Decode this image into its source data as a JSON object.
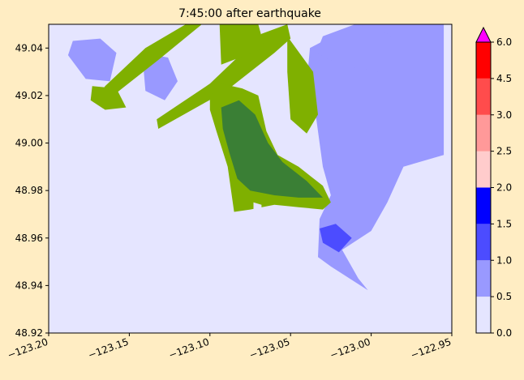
{
  "chart_data": {
    "type": "heatmap",
    "title": "7:45:00 after earthquake",
    "xlim": [
      -123.2,
      -122.95
    ],
    "ylim": [
      48.92,
      49.05
    ],
    "xticks": [
      -123.2,
      -123.15,
      -123.1,
      -123.05,
      -123.0,
      -122.95
    ],
    "xtick_labels": [
      "−123.20",
      "−123.15",
      "−123.10",
      "−123.05",
      "−123.00",
      "−122.95"
    ],
    "yticks": [
      48.92,
      48.94,
      48.96,
      48.98,
      49.0,
      49.02,
      49.04
    ],
    "ytick_labels": [
      "48.92",
      "48.94",
      "48.96",
      "48.98",
      "49.00",
      "49.02",
      "49.04"
    ],
    "background_color": "#e5e5ff",
    "land_colors": {
      "light": "#7fb000",
      "dark": "#3a7f35"
    },
    "colorbar": {
      "ticks": [
        "0.0",
        "0.5",
        "1.0",
        "1.5",
        "2.0",
        "2.5",
        "3.0",
        "4.5",
        "6.0"
      ],
      "colors": [
        "#e5e5ff",
        "#9999ff",
        "#4c4cff",
        "#0000ff",
        "#ffcccc",
        "#ff9999",
        "#ff4c4c",
        "#ff0000"
      ],
      "extend_color": "#ff00ff"
    },
    "regions": {
      "main_land": [
        [
          -123.1,
          49.02
        ],
        [
          -123.093,
          49.025
        ],
        [
          -123.08,
          49.023
        ],
        [
          -123.07,
          49.02
        ],
        [
          -123.065,
          49.005
        ],
        [
          -123.058,
          48.995
        ],
        [
          -123.045,
          48.99
        ],
        [
          -123.03,
          48.982
        ],
        [
          -123.025,
          48.975
        ],
        [
          -123.03,
          48.972
        ],
        [
          -123.045,
          48.973
        ],
        [
          -123.06,
          48.974
        ],
        [
          -123.075,
          48.972
        ],
        [
          -123.085,
          48.971
        ],
        [
          -123.089,
          48.99
        ],
        [
          -123.096,
          49.005
        ],
        [
          -123.1,
          49.014
        ]
      ],
      "dark_core": [
        [
          -123.093,
          49.015
        ],
        [
          -123.082,
          49.018
        ],
        [
          -123.072,
          49.012
        ],
        [
          -123.064,
          49.0
        ],
        [
          -123.055,
          48.992
        ],
        [
          -123.04,
          48.984
        ],
        [
          -123.03,
          48.977
        ],
        [
          -123.045,
          48.977
        ],
        [
          -123.06,
          48.978
        ],
        [
          -123.075,
          48.98
        ],
        [
          -123.083,
          48.985
        ],
        [
          -123.088,
          48.996
        ],
        [
          -123.092,
          49.006
        ]
      ],
      "lake_hole": [
        [
          -123.073,
          48.975
        ],
        [
          -123.068,
          48.974
        ],
        [
          -123.068,
          48.972
        ],
        [
          -123.073,
          48.972
        ]
      ],
      "north_ridge": [
        [
          -123.14,
          49.04
        ],
        [
          -123.115,
          49.05
        ],
        [
          -123.105,
          49.05
        ],
        [
          -123.132,
          49.035
        ],
        [
          -123.16,
          49.02
        ],
        [
          -123.172,
          49.017
        ],
        [
          -123.165,
          49.024
        ]
      ],
      "west_island": [
        [
          -123.173,
          49.024
        ],
        [
          -123.158,
          49.023
        ],
        [
          -123.152,
          49.015
        ],
        [
          -123.165,
          49.014
        ],
        [
          -123.174,
          49.018
        ]
      ],
      "mid_strip": [
        [
          -123.08,
          49.038
        ],
        [
          -123.068,
          49.046
        ],
        [
          -123.052,
          49.05
        ],
        [
          -123.05,
          49.044
        ],
        [
          -123.06,
          49.038
        ],
        [
          -123.09,
          49.022
        ],
        [
          -123.132,
          49.006
        ],
        [
          -123.133,
          49.01
        ],
        [
          -123.1,
          49.025
        ]
      ],
      "upper_block": [
        [
          -123.094,
          49.05
        ],
        [
          -123.07,
          49.05
        ],
        [
          -123.066,
          49.04
        ],
        [
          -123.093,
          49.033
        ]
      ],
      "east_strip": [
        [
          -123.052,
          49.045
        ],
        [
          -123.036,
          49.03
        ],
        [
          -123.033,
          49.012
        ],
        [
          -123.04,
          49.004
        ],
        [
          -123.05,
          49.01
        ],
        [
          -123.052,
          49.03
        ]
      ],
      "lake_a": [
        [
          -123.185,
          49.043
        ],
        [
          -123.168,
          49.044
        ],
        [
          -123.158,
          49.038
        ],
        [
          -123.162,
          49.026
        ],
        [
          -123.177,
          49.027
        ],
        [
          -123.188,
          49.037
        ]
      ],
      "lake_b": [
        [
          -123.142,
          49.038
        ],
        [
          -123.126,
          49.036
        ],
        [
          -123.12,
          49.026
        ],
        [
          -123.128,
          49.018
        ],
        [
          -123.14,
          49.022
        ]
      ],
      "lake_c": [
        [
          -123.03,
          49.045
        ],
        [
          -123.01,
          49.05
        ],
        [
          -122.99,
          49.046
        ],
        [
          -122.978,
          49.04
        ],
        [
          -122.995,
          49.03
        ],
        [
          -123.02,
          49.033
        ],
        [
          -123.034,
          49.038
        ]
      ],
      "east_water": [
        [
          -123.038,
          49.04
        ],
        [
          -123.01,
          49.05
        ],
        [
          -122.955,
          49.05
        ],
        [
          -122.955,
          48.995
        ],
        [
          -122.98,
          48.99
        ],
        [
          -122.99,
          48.975
        ],
        [
          -123.0,
          48.963
        ],
        [
          -123.018,
          48.955
        ],
        [
          -123.008,
          48.943
        ],
        [
          -123.002,
          48.938
        ],
        [
          -123.025,
          48.948
        ],
        [
          -123.033,
          48.952
        ],
        [
          -123.032,
          48.968
        ],
        [
          -123.025,
          48.978
        ],
        [
          -123.03,
          48.99
        ],
        [
          -123.034,
          49.01
        ],
        [
          -123.04,
          49.025
        ]
      ],
      "deep_patch": [
        [
          -123.032,
          48.964
        ],
        [
          -123.022,
          48.966
        ],
        [
          -123.012,
          48.96
        ],
        [
          -123.02,
          48.954
        ],
        [
          -123.03,
          48.958
        ]
      ]
    }
  }
}
